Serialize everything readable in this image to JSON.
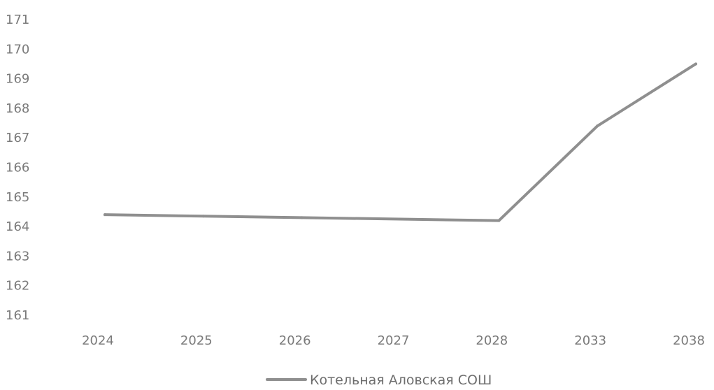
{
  "chart_data": {
    "type": "line",
    "title": "",
    "xlabel": "",
    "ylabel": "",
    "categories": [
      "2024",
      "2025",
      "2026",
      "2027",
      "2028",
      "2033",
      "2038"
    ],
    "series": [
      {
        "name": "Котельная Аловская СОШ",
        "values": [
          164.4,
          164.35,
          164.3,
          164.25,
          164.2,
          167.4,
          169.5
        ]
      }
    ],
    "ylim": [
      161,
      171
    ],
    "yticks": [
      "161",
      "162",
      "163",
      "164",
      "165",
      "166",
      "167",
      "168",
      "169",
      "170",
      "171"
    ],
    "grid": false,
    "legend_position": "bottom",
    "colors": {
      "series": "#8f8f8f",
      "text": "#7a7a7a"
    }
  }
}
